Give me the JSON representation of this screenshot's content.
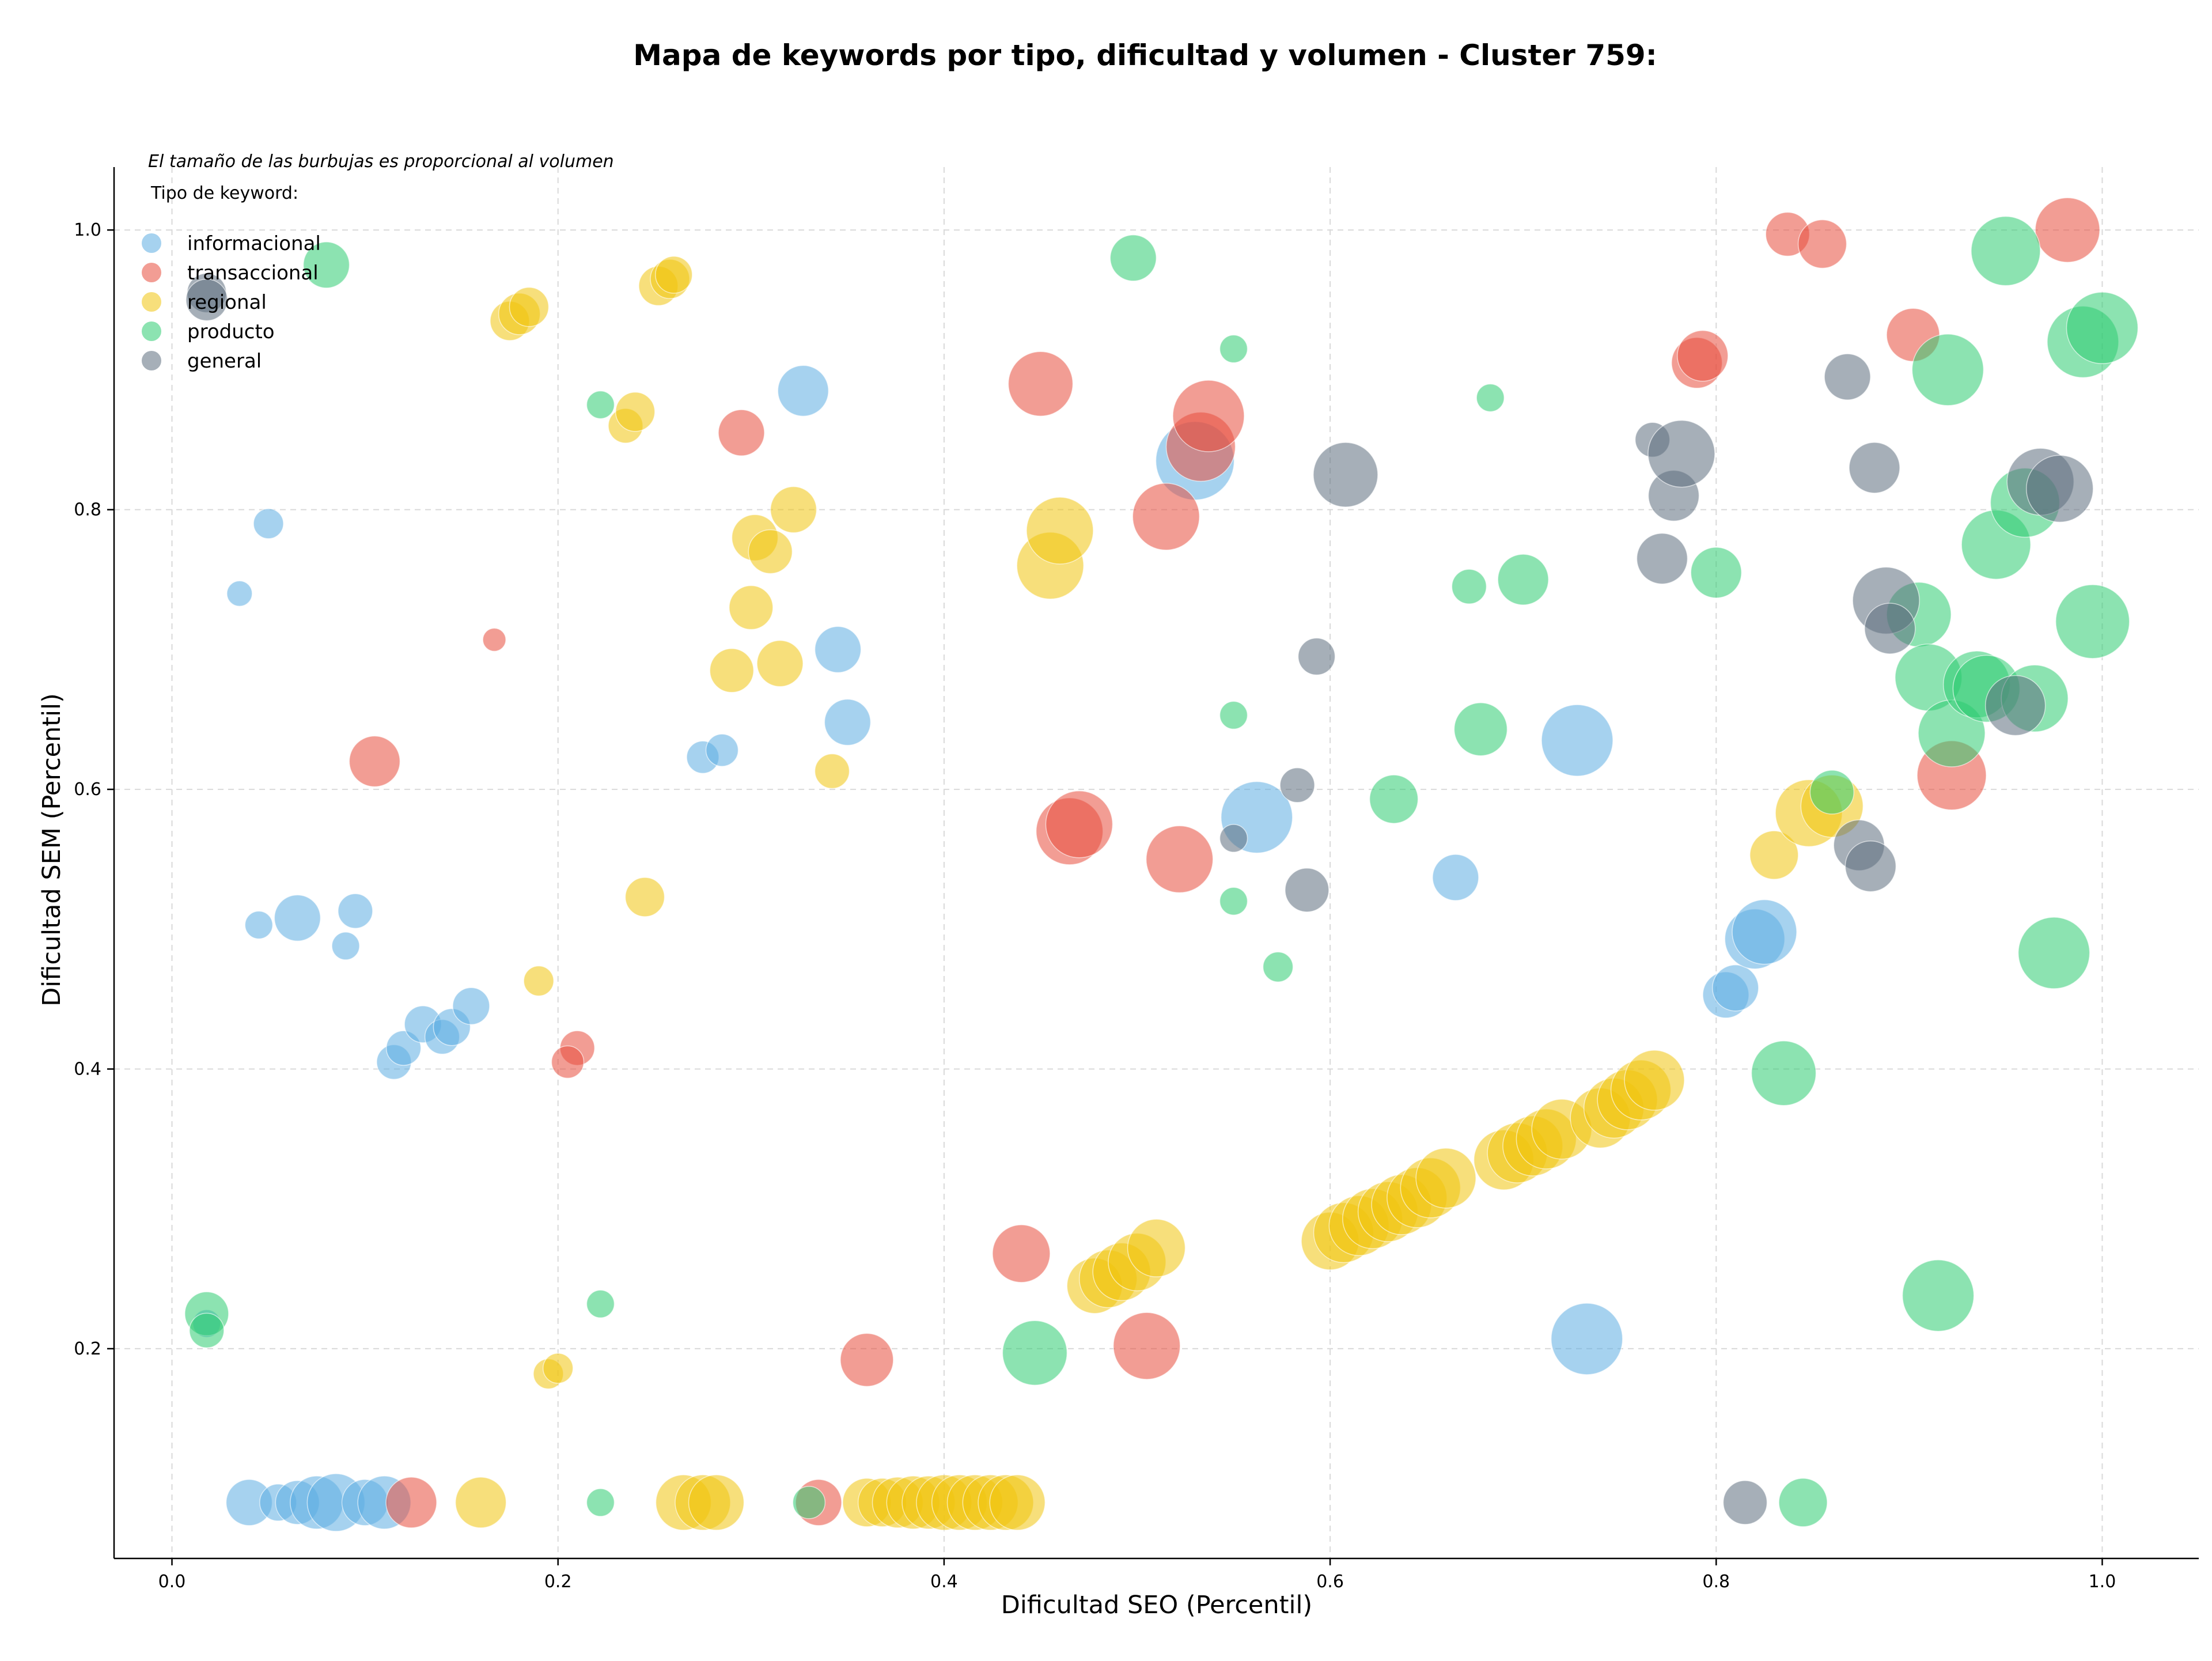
{
  "chart_data": {
    "type": "scatter",
    "title": "Mapa de keywords por tipo, dificultad y volumen - Cluster 759:",
    "xlabel": "Dificultad SEO (Percentil)",
    "ylabel": "Dificultad SEM (Percentil)",
    "xlim": [
      -0.03,
      1.05
    ],
    "ylim": [
      0.05,
      1.045
    ],
    "xticks": [
      "0.0",
      "0.2",
      "0.4",
      "0.6",
      "0.8",
      "1.0"
    ],
    "yticks": [
      "0.2",
      "0.4",
      "0.6",
      "0.8",
      "1.0"
    ],
    "xtick_values": [
      0,
      0.2,
      0.4,
      0.6,
      0.8,
      1.0
    ],
    "ytick_values": [
      0.2,
      0.4,
      0.6,
      0.8,
      1.0
    ],
    "grid": true,
    "note": "El tamaño de las burbujas es proporcional al volumen",
    "legend_title": "Tipo de keyword:",
    "legend_position": "upper-left",
    "series": [
      {
        "name": "informacional",
        "color": "#5dade2",
        "points": [
          [
            0.04,
            0.09,
            40
          ],
          [
            0.055,
            0.09,
            32
          ],
          [
            0.065,
            0.09,
            38
          ],
          [
            0.075,
            0.09,
            46
          ],
          [
            0.085,
            0.09,
            50
          ],
          [
            0.1,
            0.09,
            40
          ],
          [
            0.11,
            0.09,
            46
          ],
          [
            0.05,
            0.79,
            26
          ],
          [
            0.035,
            0.74,
            22
          ],
          [
            0.045,
            0.503,
            24
          ],
          [
            0.065,
            0.508,
            40
          ],
          [
            0.095,
            0.513,
            30
          ],
          [
            0.09,
            0.488,
            24
          ],
          [
            0.115,
            0.405,
            30
          ],
          [
            0.12,
            0.415,
            30
          ],
          [
            0.13,
            0.432,
            32
          ],
          [
            0.14,
            0.423,
            30
          ],
          [
            0.145,
            0.43,
            32
          ],
          [
            0.155,
            0.445,
            32
          ],
          [
            0.327,
            0.885,
            44
          ],
          [
            0.345,
            0.7,
            40
          ],
          [
            0.35,
            0.648,
            40
          ],
          [
            0.275,
            0.623,
            28
          ],
          [
            0.285,
            0.628,
            28
          ],
          [
            0.018,
            0.218,
            24
          ],
          [
            0.53,
            0.835,
            68
          ],
          [
            0.562,
            0.58,
            62
          ],
          [
            0.665,
            0.537,
            40
          ],
          [
            0.728,
            0.635,
            62
          ],
          [
            0.733,
            0.207,
            62
          ],
          [
            0.805,
            0.453,
            40
          ],
          [
            0.81,
            0.458,
            40
          ],
          [
            0.82,
            0.493,
            52
          ],
          [
            0.825,
            0.498,
            56
          ]
        ]
      },
      {
        "name": "transaccional",
        "color": "#e74c3c",
        "points": [
          [
            0.124,
            0.09,
            44
          ],
          [
            0.105,
            0.62,
            44
          ],
          [
            0.167,
            0.707,
            20
          ],
          [
            0.21,
            0.415,
            30
          ],
          [
            0.205,
            0.405,
            28
          ],
          [
            0.295,
            0.855,
            40
          ],
          [
            0.335,
            0.09,
            40
          ],
          [
            0.36,
            0.192,
            46
          ],
          [
            0.44,
            0.268,
            50
          ],
          [
            0.45,
            0.89,
            56
          ],
          [
            0.465,
            0.57,
            58
          ],
          [
            0.47,
            0.575,
            58
          ],
          [
            0.505,
            0.202,
            58
          ],
          [
            0.515,
            0.795,
            58
          ],
          [
            0.522,
            0.55,
            58
          ],
          [
            0.533,
            0.845,
            60
          ],
          [
            0.537,
            0.867,
            62
          ],
          [
            0.837,
            0.997,
            38
          ],
          [
            0.855,
            0.99,
            42
          ],
          [
            0.79,
            0.905,
            44
          ],
          [
            0.793,
            0.91,
            44
          ],
          [
            0.902,
            0.925,
            46
          ],
          [
            0.922,
            0.61,
            60
          ],
          [
            0.982,
            1.0,
            56
          ]
        ]
      },
      {
        "name": "regional",
        "color": "#f1c40f",
        "points": [
          [
            0.16,
            0.09,
            44
          ],
          [
            0.175,
            0.935,
            34
          ],
          [
            0.18,
            0.94,
            36
          ],
          [
            0.185,
            0.945,
            34
          ],
          [
            0.19,
            0.463,
            26
          ],
          [
            0.195,
            0.182,
            26
          ],
          [
            0.2,
            0.186,
            26
          ],
          [
            0.235,
            0.86,
            30
          ],
          [
            0.24,
            0.87,
            34
          ],
          [
            0.245,
            0.523,
            34
          ],
          [
            0.252,
            0.96,
            34
          ],
          [
            0.258,
            0.965,
            34
          ],
          [
            0.26,
            0.968,
            32
          ],
          [
            0.265,
            0.09,
            48
          ],
          [
            0.275,
            0.09,
            48
          ],
          [
            0.282,
            0.09,
            48
          ],
          [
            0.29,
            0.685,
            38
          ],
          [
            0.3,
            0.73,
            38
          ],
          [
            0.302,
            0.78,
            40
          ],
          [
            0.31,
            0.77,
            38
          ],
          [
            0.315,
            0.69,
            40
          ],
          [
            0.322,
            0.8,
            40
          ],
          [
            0.342,
            0.613,
            30
          ],
          [
            0.36,
            0.09,
            42
          ],
          [
            0.368,
            0.09,
            42
          ],
          [
            0.376,
            0.09,
            44
          ],
          [
            0.384,
            0.09,
            46
          ],
          [
            0.392,
            0.09,
            46
          ],
          [
            0.4,
            0.09,
            48
          ],
          [
            0.408,
            0.09,
            48
          ],
          [
            0.416,
            0.09,
            48
          ],
          [
            0.424,
            0.09,
            48
          ],
          [
            0.432,
            0.09,
            48
          ],
          [
            0.438,
            0.09,
            48
          ],
          [
            0.455,
            0.76,
            58
          ],
          [
            0.46,
            0.785,
            58
          ],
          [
            0.478,
            0.245,
            48
          ],
          [
            0.485,
            0.25,
            50
          ],
          [
            0.492,
            0.255,
            50
          ],
          [
            0.5,
            0.262,
            50
          ],
          [
            0.51,
            0.272,
            50
          ],
          [
            0.6,
            0.277,
            50
          ],
          [
            0.607,
            0.283,
            52
          ],
          [
            0.615,
            0.288,
            52
          ],
          [
            0.622,
            0.293,
            52
          ],
          [
            0.63,
            0.298,
            52
          ],
          [
            0.637,
            0.303,
            52
          ],
          [
            0.645,
            0.308,
            52
          ],
          [
            0.652,
            0.315,
            52
          ],
          [
            0.66,
            0.322,
            52
          ],
          [
            0.69,
            0.335,
            52
          ],
          [
            0.697,
            0.34,
            52
          ],
          [
            0.705,
            0.345,
            52
          ],
          [
            0.712,
            0.35,
            52
          ],
          [
            0.72,
            0.357,
            52
          ],
          [
            0.74,
            0.365,
            52
          ],
          [
            0.747,
            0.372,
            52
          ],
          [
            0.754,
            0.378,
            52
          ],
          [
            0.761,
            0.385,
            52
          ],
          [
            0.768,
            0.392,
            52
          ],
          [
            0.83,
            0.553,
            42
          ],
          [
            0.848,
            0.583,
            58
          ],
          [
            0.86,
            0.588,
            54
          ]
        ]
      },
      {
        "name": "producto",
        "color": "#2ecc71",
        "points": [
          [
            0.018,
            0.225,
            38
          ],
          [
            0.018,
            0.213,
            30
          ],
          [
            0.08,
            0.975,
            40
          ],
          [
            0.222,
            0.875,
            24
          ],
          [
            0.222,
            0.232,
            24
          ],
          [
            0.222,
            0.09,
            24
          ],
          [
            0.33,
            0.09,
            28
          ],
          [
            0.447,
            0.197,
            56
          ],
          [
            0.498,
            0.98,
            40
          ],
          [
            0.55,
            0.915,
            24
          ],
          [
            0.55,
            0.653,
            24
          ],
          [
            0.55,
            0.52,
            24
          ],
          [
            0.573,
            0.473,
            26
          ],
          [
            0.633,
            0.593,
            42
          ],
          [
            0.672,
            0.745,
            30
          ],
          [
            0.678,
            0.643,
            46
          ],
          [
            0.683,
            0.88,
            24
          ],
          [
            0.7,
            0.75,
            44
          ],
          [
            0.8,
            0.755,
            44
          ],
          [
            0.835,
            0.397,
            56
          ],
          [
            0.86,
            0.598,
            38
          ],
          [
            0.845,
            0.09,
            42
          ],
          [
            0.905,
            0.725,
            56
          ],
          [
            0.91,
            0.68,
            58
          ],
          [
            0.915,
            0.238,
            62
          ],
          [
            0.922,
            0.64,
            58
          ],
          [
            0.92,
            0.9,
            62
          ],
          [
            0.935,
            0.675,
            58
          ],
          [
            0.94,
            0.672,
            58
          ],
          [
            0.945,
            0.775,
            60
          ],
          [
            0.96,
            0.805,
            60
          ],
          [
            0.965,
            0.665,
            58
          ],
          [
            0.95,
            0.985,
            60
          ],
          [
            0.99,
            0.92,
            62
          ],
          [
            0.995,
            0.72,
            64
          ],
          [
            1.0,
            0.93,
            62
          ],
          [
            0.975,
            0.483,
            62
          ]
        ]
      },
      {
        "name": "general",
        "color": "#5d6d7e",
        "points": [
          [
            0.018,
            0.955,
            34
          ],
          [
            0.018,
            0.95,
            36
          ],
          [
            0.55,
            0.565,
            24
          ],
          [
            0.583,
            0.603,
            30
          ],
          [
            0.588,
            0.528,
            38
          ],
          [
            0.593,
            0.695,
            32
          ],
          [
            0.608,
            0.825,
            56
          ],
          [
            0.767,
            0.85,
            30
          ],
          [
            0.772,
            0.765,
            44
          ],
          [
            0.778,
            0.81,
            44
          ],
          [
            0.782,
            0.84,
            58
          ],
          [
            0.815,
            0.09,
            38
          ],
          [
            0.868,
            0.895,
            40
          ],
          [
            0.874,
            0.56,
            44
          ],
          [
            0.882,
            0.83,
            44
          ],
          [
            0.88,
            0.545,
            44
          ],
          [
            0.888,
            0.735,
            58
          ],
          [
            0.89,
            0.715,
            44
          ],
          [
            0.955,
            0.66,
            52
          ],
          [
            0.968,
            0.82,
            58
          ],
          [
            0.978,
            0.815,
            58
          ]
        ]
      }
    ]
  }
}
